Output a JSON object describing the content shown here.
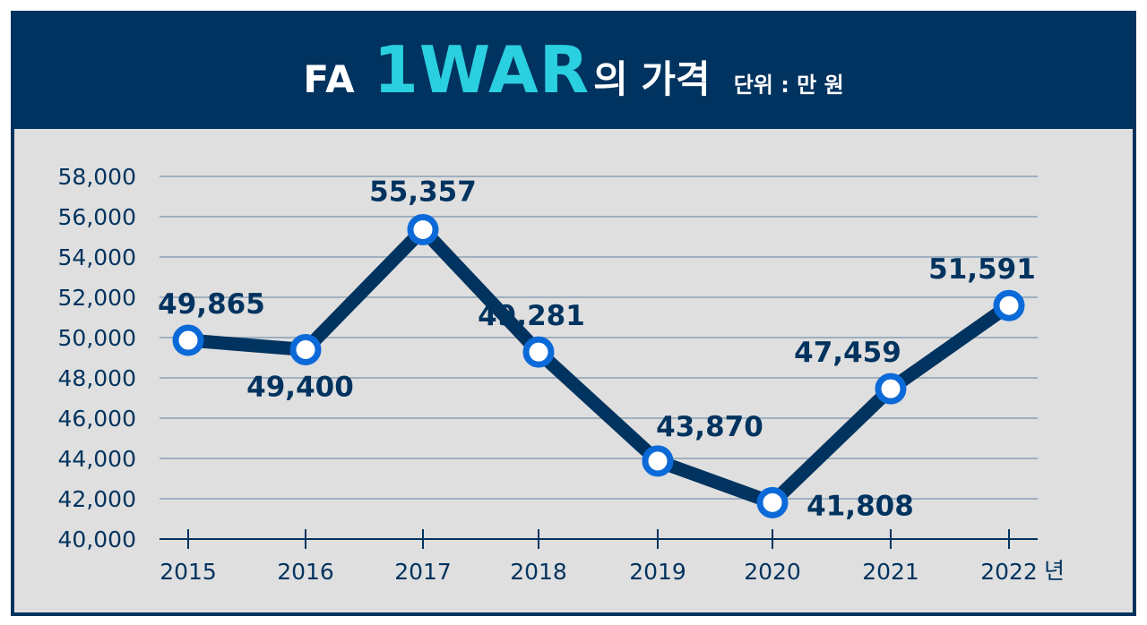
{
  "title": {
    "prefix": "FA",
    "highlight": "1WAR",
    "suffix": "의 가격",
    "unit": "단위 : 만 원"
  },
  "colors": {
    "frame": "#00335f",
    "highlight": "#2ad0e0",
    "plot_bg": "#dfdfdf",
    "line": "#00335f",
    "marker_ring": "#0c6ad8",
    "grid": "#8aa0b5"
  },
  "chart_data": {
    "type": "line",
    "categories": [
      "2015",
      "2016",
      "2017",
      "2018",
      "2019",
      "2020",
      "2021",
      "2022"
    ],
    "x_unit": "년",
    "series": [
      {
        "values": [
          49865,
          49400,
          55357,
          49281,
          43870,
          41808,
          47459,
          51591
        ]
      }
    ],
    "data_labels": [
      "49,865",
      "49,400",
      "55,357",
      "49,281",
      "43,870",
      "41,808",
      "47,459",
      "51,591"
    ],
    "yticks": [
      "40,000",
      "42,000",
      "44,000",
      "46,000",
      "48,000",
      "50,000",
      "52,000",
      "54,000",
      "56,000",
      "58,000"
    ],
    "ylim": [
      40000,
      58000
    ],
    "grid": true,
    "legend": "none"
  }
}
